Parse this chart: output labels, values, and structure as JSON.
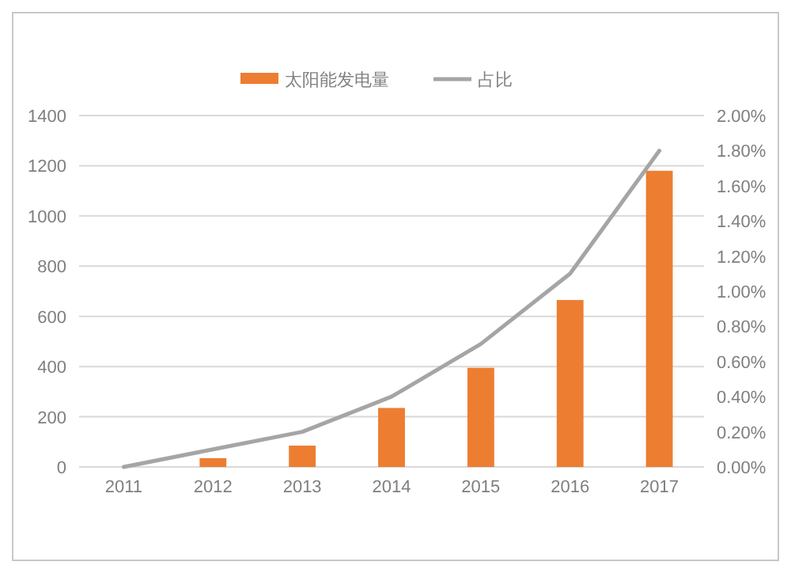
{
  "chart_data": {
    "type": "bar",
    "categories": [
      "2011",
      "2012",
      "2013",
      "2014",
      "2015",
      "2016",
      "2017"
    ],
    "series": [
      {
        "name": "太阳能发电量",
        "color": "#ed7d31",
        "values": [
          0,
          35,
          85,
          235,
          395,
          665,
          1180
        ]
      },
      {
        "name": "占比",
        "type": "line",
        "axis": "y2",
        "color": "#a5a5a5",
        "values": [
          0,
          0.1,
          0.2,
          0.4,
          0.7,
          1.1,
          1.8
        ]
      }
    ],
    "ylim": [
      0,
      1400
    ],
    "yticks": [
      0,
      200,
      400,
      600,
      800,
      1000,
      1200,
      1400
    ],
    "y2lim": [
      0,
      2
    ],
    "y2ticks": [
      {
        "value": 0,
        "label": "0.00%"
      },
      {
        "value": 0.2,
        "label": "0.20%"
      },
      {
        "value": 0.4,
        "label": "0.40%"
      },
      {
        "value": 0.6,
        "label": "0.60%"
      },
      {
        "value": 0.8,
        "label": "0.80%"
      },
      {
        "value": 1,
        "label": "1.00%"
      },
      {
        "value": 1.2,
        "label": "1.20%"
      },
      {
        "value": 1.4,
        "label": "1.40%"
      },
      {
        "value": 1.6,
        "label": "1.60%"
      },
      {
        "value": 1.8,
        "label": "1.80%"
      },
      {
        "value": 2,
        "label": "2.00%"
      }
    ],
    "grid": "y",
    "legend": "top",
    "marker": "none"
  }
}
